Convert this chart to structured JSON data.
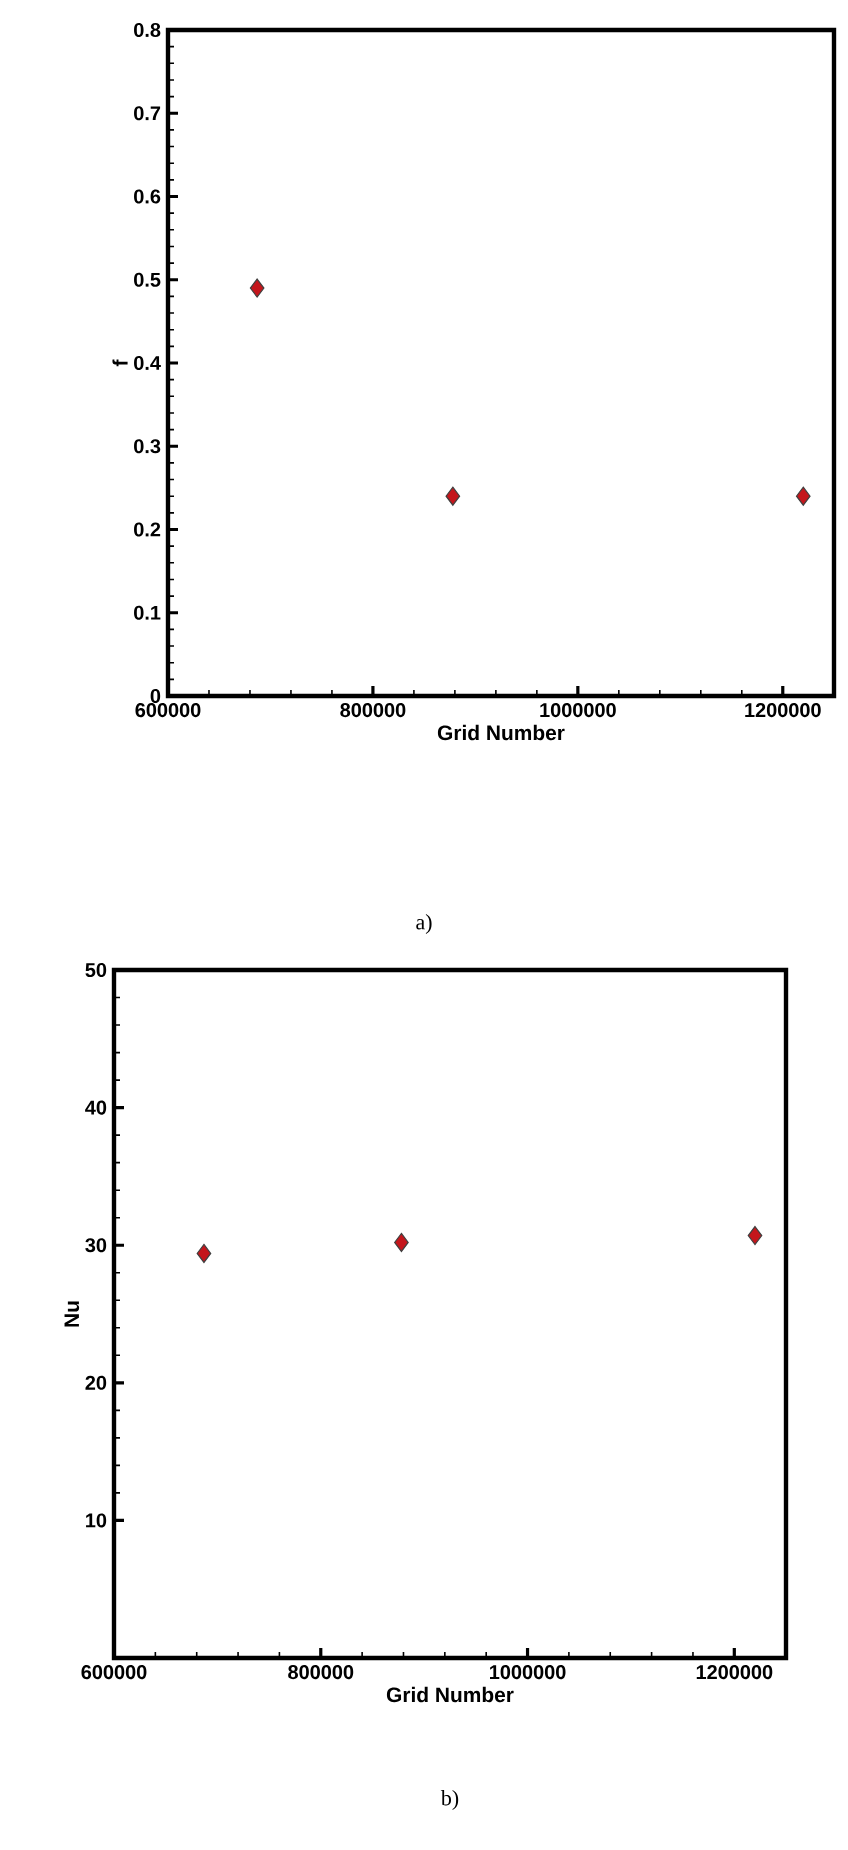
{
  "chart_data": [
    {
      "type": "scatter",
      "xlabel": "Grid Number",
      "ylabel": "f",
      "x": [
        687000,
        878000,
        1220000
      ],
      "series": [
        {
          "color": "#c4161c",
          "values": [
            0.49,
            0.24,
            0.24
          ]
        }
      ],
      "xlim": [
        600000,
        1250000
      ],
      "xticks": [
        600000,
        800000,
        1000000,
        1200000
      ],
      "ylim": [
        0,
        0.8
      ],
      "yticks": [
        0,
        0.1,
        0.2,
        0.3,
        0.4,
        0.5,
        0.6,
        0.7,
        0.8
      ],
      "marker": "diamond",
      "grid": false,
      "annotations": [
        "a)"
      ]
    },
    {
      "type": "scatter",
      "xlabel": "Grid Number",
      "ylabel": "Nu",
      "x": [
        687000,
        878000,
        1220000
      ],
      "series": [
        {
          "color": "#c4161c",
          "values": [
            29.4,
            30.2,
            30.7
          ]
        }
      ],
      "xlim": [
        600000,
        1250000
      ],
      "xticks": [
        600000,
        800000,
        1000000,
        1200000
      ],
      "ylim": [
        0,
        50
      ],
      "yticks": [
        10,
        20,
        30,
        40,
        50
      ],
      "marker": "diamond",
      "grid": false,
      "annotations": [
        "b)"
      ]
    }
  ]
}
